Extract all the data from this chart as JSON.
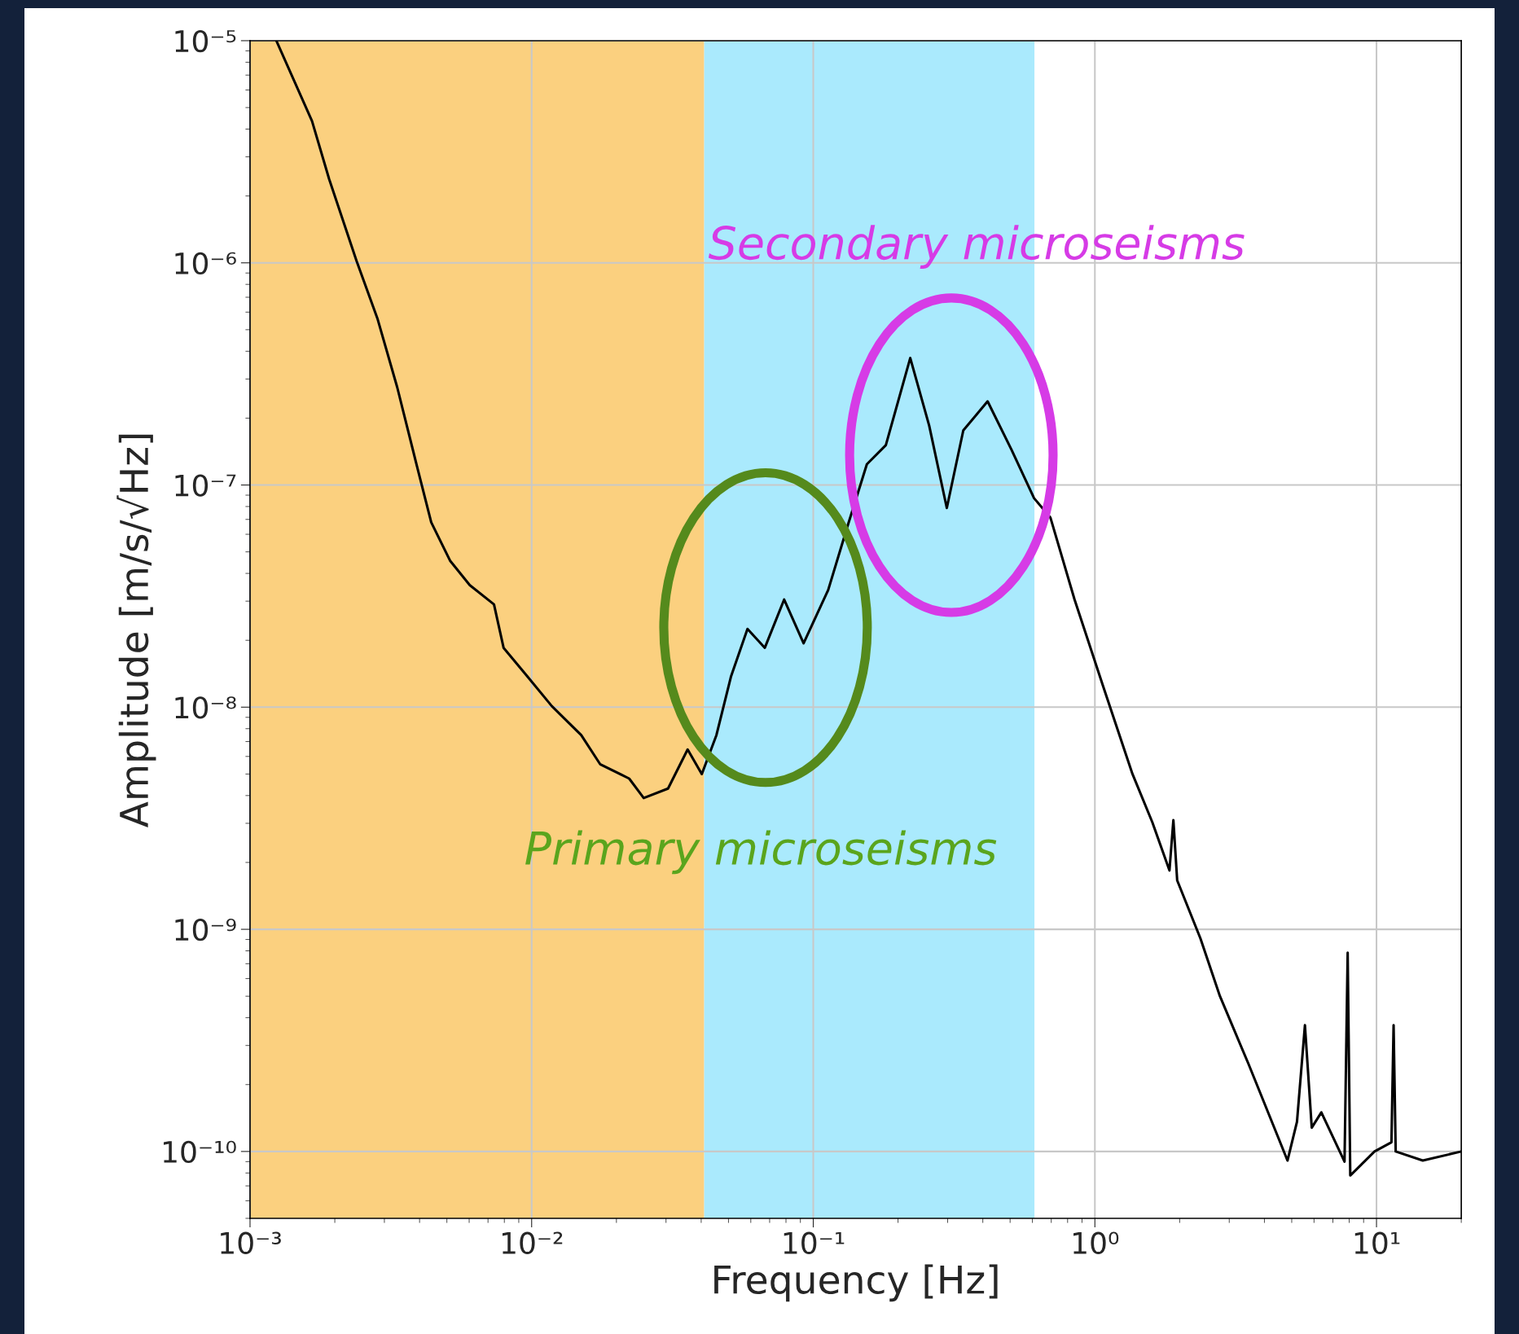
{
  "chart_data": {
    "type": "line",
    "xlabel": "Frequency [Hz]",
    "ylabel": "Amplitude [m/s/√Hz]",
    "log": "xy",
    "grid": true,
    "xlim": [
      0.001,
      20
    ],
    "ylim": [
      5e-11,
      1e-05
    ],
    "xticks": [
      {
        "value": 0.001,
        "label": "10⁻³"
      },
      {
        "value": 0.01,
        "label": "10⁻²"
      },
      {
        "value": 0.1,
        "label": "10⁻¹"
      },
      {
        "value": 1,
        "label": "10⁰"
      },
      {
        "value": 10,
        "label": "10¹"
      }
    ],
    "yticks": [
      {
        "value": 1e-05,
        "label": "10⁻⁵"
      },
      {
        "value": 1e-06,
        "label": "10⁻⁶"
      },
      {
        "value": 1e-07,
        "label": "10⁻⁷"
      },
      {
        "value": 1e-08,
        "label": "10⁻⁸"
      },
      {
        "value": 1e-09,
        "label": "10⁻⁹"
      },
      {
        "value": 1e-10,
        "label": "10⁻¹⁰"
      }
    ],
    "bands": [
      {
        "axis": "x",
        "from": 0.001,
        "to": 0.041,
        "color": "#fbd07f"
      },
      {
        "axis": "x",
        "from": 0.041,
        "to": 0.61,
        "color": "#aaeafd"
      }
    ],
    "annotations": [
      "Secondary microseisms",
      "Primary microseisms"
    ],
    "series": [
      {
        "color": "#000000",
        "x": [
          0.00124,
          0.00166,
          0.00191,
          0.00239,
          0.00284,
          0.00333,
          0.0039,
          0.0044,
          0.00514,
          0.00603,
          0.00735,
          0.00795,
          0.00968,
          0.0118,
          0.015,
          0.0175,
          0.0222,
          0.025,
          0.0305,
          0.0358,
          0.0402,
          0.0453,
          0.051,
          0.0584,
          0.0673,
          0.0788,
          0.0924,
          0.113,
          0.132,
          0.155,
          0.181,
          0.221,
          0.258,
          0.298,
          0.341,
          0.416,
          0.506,
          0.608,
          0.695,
          0.847,
          1.07,
          1.36,
          1.6,
          1.84,
          1.9,
          1.96,
          2.37,
          2.78,
          3.51,
          4.46,
          4.83,
          5.22,
          5.57,
          5.89,
          6.37,
          7.7,
          7.9,
          8.07,
          9.84,
          11.3,
          11.5,
          11.7,
          14.6,
          20
        ],
        "values": [
          1e-05,
          4.35e-06,
          2.38e-06,
          1.02e-06,
          5.57e-07,
          2.76e-07,
          1.24e-07,
          6.79e-08,
          4.55e-08,
          3.54e-08,
          2.9e-08,
          1.85e-08,
          1.37e-08,
          1.01e-08,
          7.48e-09,
          5.54e-09,
          4.77e-09,
          3.9e-09,
          4.3e-09,
          6.45e-09,
          5e-09,
          7.48e-09,
          1.37e-08,
          2.25e-08,
          1.85e-08,
          3.05e-08,
          1.94e-08,
          3.37e-08,
          6.46e-08,
          1.24e-07,
          1.51e-07,
          3.73e-07,
          1.85e-07,
          7.88e-08,
          1.76e-07,
          2.38e-07,
          1.44e-07,
          8.73e-08,
          7.14e-08,
          3.05e-08,
          1.24e-08,
          5e-09,
          3.03e-09,
          1.84e-09,
          3.1e-09,
          1.66e-09,
          9.1e-10,
          5e-10,
          2.48e-10,
          1.17e-10,
          9.1e-11,
          1.36e-10,
          3.7e-10,
          1.28e-10,
          1.5e-10,
          9e-11,
          7.85e-10,
          7.8e-11,
          1e-10,
          1.1e-10,
          3.7e-10,
          1e-10,
          9.1e-11,
          1e-10
        ]
      }
    ]
  }
}
